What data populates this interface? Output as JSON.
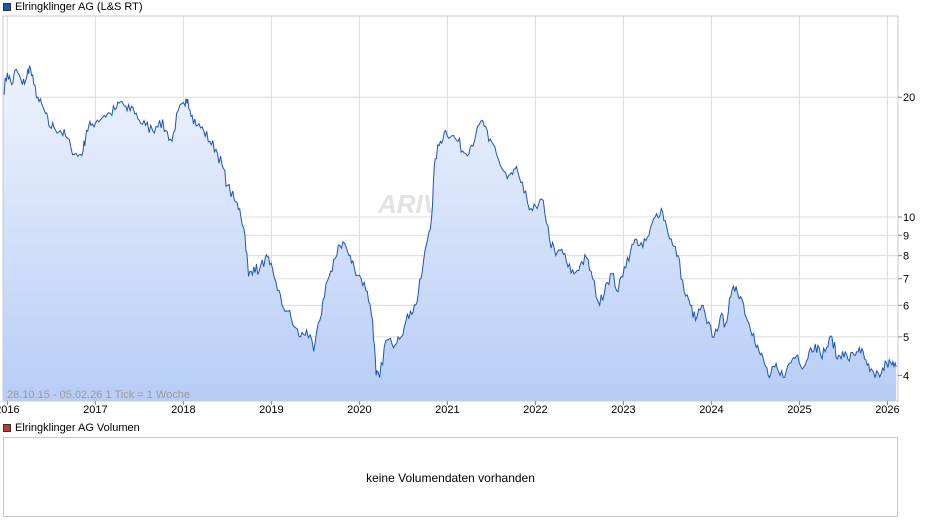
{
  "colors": {
    "line": "#1d55b4",
    "fill_top": "#eef3fd",
    "fill_bottom": "#b7cdf6",
    "grid": "#dcdcdc",
    "price_swatch": "#1d55b4",
    "volume_swatch": "#c0392b"
  },
  "watermark": "ARIVA.DE",
  "chart_data": {
    "type": "area",
    "title": "Elringklinger AG (L&S RT)",
    "info": "28.10.15 - 05.02.26   1 Tick = 1 Woche",
    "y_scale": "log",
    "ylim": [
      3.45,
      32
    ],
    "y_ticks": [
      "4",
      "5",
      "6",
      "7",
      "8",
      "9",
      "10",
      "20"
    ],
    "y_tick_values": [
      4,
      5,
      6,
      7,
      8,
      9,
      10,
      20
    ],
    "x_range": [
      2015.95,
      2026.12
    ],
    "x_ticks": [
      "2016",
      "2017",
      "2018",
      "2019",
      "2020",
      "2021",
      "2022",
      "2023",
      "2024",
      "2025",
      "2026"
    ],
    "x_tick_values": [
      2016,
      2017,
      2018,
      2019,
      2020,
      2021,
      2022,
      2023,
      2024,
      2025,
      2026
    ],
    "grid": true,
    "series": [
      {
        "name": "Elringklinger AG (L&S RT)",
        "points": [
          [
            2015.95,
            20.5
          ],
          [
            2016.0,
            23.0
          ],
          [
            2016.05,
            21.5
          ],
          [
            2016.1,
            23.5
          ],
          [
            2016.17,
            21.5
          ],
          [
            2016.22,
            22.5
          ],
          [
            2016.25,
            24.0
          ],
          [
            2016.3,
            21.5
          ],
          [
            2016.36,
            19.5
          ],
          [
            2016.42,
            18.5
          ],
          [
            2016.47,
            17.0
          ],
          [
            2016.53,
            16.8
          ],
          [
            2016.6,
            16.5
          ],
          [
            2016.66,
            16.0
          ],
          [
            2016.72,
            15.0
          ],
          [
            2016.8,
            14.2
          ],
          [
            2016.86,
            14.7
          ],
          [
            2016.9,
            16.5
          ],
          [
            2016.95,
            17.0
          ],
          [
            2017.02,
            17.5
          ],
          [
            2017.1,
            18.0
          ],
          [
            2017.17,
            18.2
          ],
          [
            2017.24,
            18.8
          ],
          [
            2017.3,
            19.5
          ],
          [
            2017.36,
            18.5
          ],
          [
            2017.43,
            18.8
          ],
          [
            2017.5,
            17.5
          ],
          [
            2017.57,
            17.0
          ],
          [
            2017.65,
            16.5
          ],
          [
            2017.73,
            17.5
          ],
          [
            2017.8,
            16.5
          ],
          [
            2017.87,
            15.5
          ],
          [
            2017.94,
            18.5
          ],
          [
            2018.02,
            19.0
          ],
          [
            2018.05,
            19.8
          ],
          [
            2018.1,
            18.0
          ],
          [
            2018.16,
            17.0
          ],
          [
            2018.23,
            16.5
          ],
          [
            2018.3,
            15.5
          ],
          [
            2018.37,
            14.8
          ],
          [
            2018.44,
            13.5
          ],
          [
            2018.5,
            12.0
          ],
          [
            2018.58,
            11.0
          ],
          [
            2018.64,
            10.5
          ],
          [
            2018.7,
            9.0
          ],
          [
            2018.74,
            7.1
          ],
          [
            2018.8,
            7.5
          ],
          [
            2018.86,
            7.3
          ],
          [
            2018.93,
            7.9
          ],
          [
            2018.98,
            7.6
          ],
          [
            2019.05,
            6.9
          ],
          [
            2019.12,
            6.0
          ],
          [
            2019.19,
            5.8
          ],
          [
            2019.26,
            5.3
          ],
          [
            2019.33,
            5.0
          ],
          [
            2019.4,
            5.2
          ],
          [
            2019.48,
            4.6
          ],
          [
            2019.55,
            5.5
          ],
          [
            2019.62,
            6.8
          ],
          [
            2019.69,
            7.3
          ],
          [
            2019.76,
            8.5
          ],
          [
            2019.83,
            8.6
          ],
          [
            2019.88,
            8.0
          ],
          [
            2019.94,
            7.5
          ],
          [
            2020.02,
            7.0
          ],
          [
            2020.09,
            6.5
          ],
          [
            2020.15,
            5.5
          ],
          [
            2020.19,
            4.0
          ],
          [
            2020.23,
            3.95
          ],
          [
            2020.3,
            4.9
          ],
          [
            2020.37,
            4.8
          ],
          [
            2020.44,
            5.0
          ],
          [
            2020.51,
            5.3
          ],
          [
            2020.58,
            5.8
          ],
          [
            2020.64,
            6.0
          ],
          [
            2020.7,
            7.0
          ],
          [
            2020.76,
            8.5
          ],
          [
            2020.82,
            10.0
          ],
          [
            2020.86,
            14.0
          ],
          [
            2020.92,
            15.5
          ],
          [
            2020.98,
            16.5
          ],
          [
            2021.05,
            16.0
          ],
          [
            2021.12,
            15.5
          ],
          [
            2021.19,
            14.5
          ],
          [
            2021.26,
            15.0
          ],
          [
            2021.32,
            16.0
          ],
          [
            2021.4,
            17.5
          ],
          [
            2021.47,
            15.5
          ],
          [
            2021.54,
            15.0
          ],
          [
            2021.6,
            13.5
          ],
          [
            2021.68,
            12.5
          ],
          [
            2021.74,
            12.8
          ],
          [
            2021.8,
            13.0
          ],
          [
            2021.87,
            11.5
          ],
          [
            2021.95,
            10.5
          ],
          [
            2022.02,
            10.5
          ],
          [
            2022.09,
            11.0
          ],
          [
            2022.16,
            8.8
          ],
          [
            2022.23,
            8.0
          ],
          [
            2022.3,
            8.3
          ],
          [
            2022.37,
            7.5
          ],
          [
            2022.44,
            7.2
          ],
          [
            2022.51,
            7.6
          ],
          [
            2022.58,
            7.9
          ],
          [
            2022.65,
            7.0
          ],
          [
            2022.73,
            6.0
          ],
          [
            2022.8,
            6.8
          ],
          [
            2022.87,
            7.2
          ],
          [
            2022.94,
            6.5
          ],
          [
            2023.01,
            7.5
          ],
          [
            2023.08,
            8.2
          ],
          [
            2023.15,
            8.8
          ],
          [
            2023.22,
            8.4
          ],
          [
            2023.29,
            9.0
          ],
          [
            2023.36,
            10.0
          ],
          [
            2023.43,
            10.5
          ],
          [
            2023.49,
            9.5
          ],
          [
            2023.56,
            8.5
          ],
          [
            2023.62,
            8.0
          ],
          [
            2023.69,
            6.5
          ],
          [
            2023.76,
            6.0
          ],
          [
            2023.82,
            5.5
          ],
          [
            2023.89,
            6.0
          ],
          [
            2023.95,
            5.4
          ],
          [
            2024.03,
            5.0
          ],
          [
            2024.1,
            5.6
          ],
          [
            2024.16,
            5.4
          ],
          [
            2024.22,
            6.3
          ],
          [
            2024.28,
            6.7
          ],
          [
            2024.35,
            6.2
          ],
          [
            2024.41,
            5.5
          ],
          [
            2024.48,
            5.1
          ],
          [
            2024.54,
            4.6
          ],
          [
            2024.6,
            4.3
          ],
          [
            2024.66,
            3.95
          ],
          [
            2024.72,
            4.2
          ],
          [
            2024.78,
            4.0
          ],
          [
            2024.85,
            4.1
          ],
          [
            2024.92,
            4.4
          ],
          [
            2024.98,
            4.5
          ],
          [
            2025.05,
            4.2
          ],
          [
            2025.11,
            4.6
          ],
          [
            2025.18,
            4.8
          ],
          [
            2025.24,
            4.5
          ],
          [
            2025.31,
            4.7
          ],
          [
            2025.37,
            5.0
          ],
          [
            2025.43,
            4.4
          ],
          [
            2025.49,
            4.6
          ],
          [
            2025.55,
            4.4
          ],
          [
            2025.62,
            4.5
          ],
          [
            2025.68,
            4.7
          ],
          [
            2025.74,
            4.4
          ],
          [
            2025.8,
            4.1
          ],
          [
            2025.86,
            3.95
          ],
          [
            2025.93,
            4.05
          ],
          [
            2025.99,
            4.3
          ],
          [
            2026.05,
            4.25
          ],
          [
            2026.1,
            4.2
          ]
        ]
      }
    ]
  },
  "volume": {
    "legend": "Elringklinger AG Volumen",
    "message": "keine Volumendaten vorhanden"
  }
}
